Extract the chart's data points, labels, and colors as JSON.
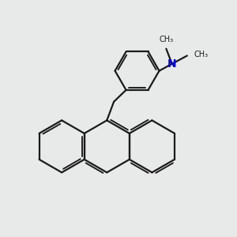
{
  "bg_color": "#e8eaea",
  "bond_color": "#1a1a1a",
  "N_color": "#0000cc",
  "bond_width": 1.6,
  "figsize": [
    3.0,
    3.0
  ],
  "dpi": 100,
  "xlim": [
    0,
    10
  ],
  "ylim": [
    0,
    10
  ]
}
